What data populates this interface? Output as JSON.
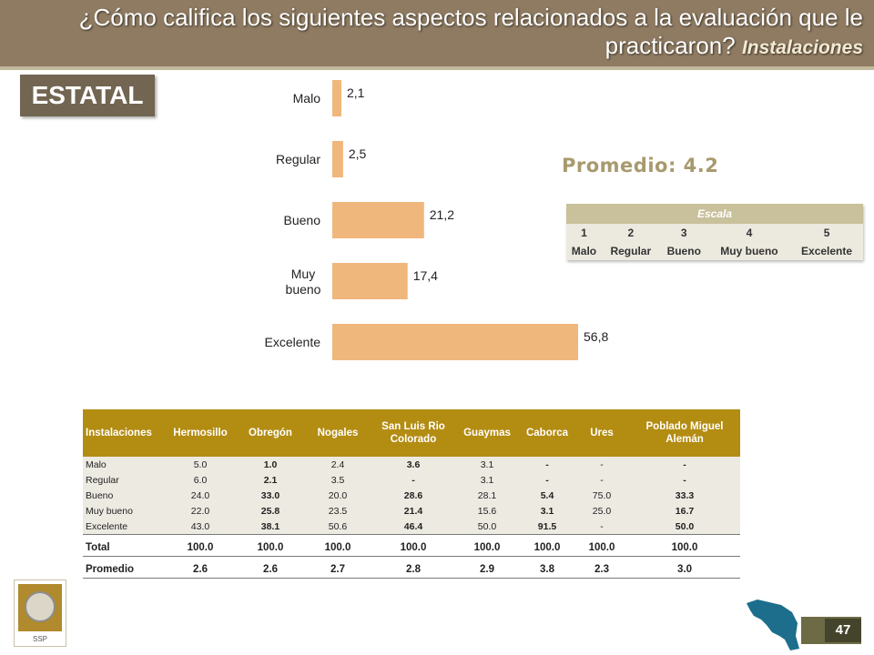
{
  "header": {
    "title": "¿Cómo califica los siguientes aspectos relacionados a la evaluación que le practicaron?",
    "subtitle": "Instalaciones"
  },
  "section_label": "ESTATAL",
  "promedio": "Promedio: 4.2",
  "escala": {
    "title": "Escala",
    "numbers": [
      "1",
      "2",
      "3",
      "4",
      "5"
    ],
    "labels": [
      "Malo",
      "Regular",
      "Bueno",
      "Muy bueno",
      "Excelente"
    ]
  },
  "chart_data": {
    "type": "bar",
    "orientation": "horizontal",
    "categories": [
      "Malo",
      "Regular",
      "Bueno",
      "Muy bueno",
      "Excelente"
    ],
    "values": [
      2.1,
      2.5,
      21.2,
      17.4,
      56.8
    ],
    "value_labels": [
      "2,1",
      "2,5",
      "21,2",
      "17,4",
      "56,8"
    ],
    "xlim": [
      0,
      60
    ],
    "grid": false,
    "bar_color": "#f0b77c"
  },
  "table": {
    "headers": [
      "Instalaciones",
      "Hermosillo",
      "Obregón",
      "Nogales",
      "San Luis Rio Colorado",
      "Guaymas",
      "Caborca",
      "Ures",
      "Poblado Miguel Alemán"
    ],
    "rows": [
      {
        "label": "Malo",
        "cells": [
          "5.0",
          "1.0",
          "2.4",
          "3.6",
          "3.1",
          "-",
          "-",
          "-"
        ]
      },
      {
        "label": "Regular",
        "cells": [
          "6.0",
          "2.1",
          "3.5",
          "-",
          "3.1",
          "-",
          "-",
          "-"
        ]
      },
      {
        "label": "Bueno",
        "cells": [
          "24.0",
          "33.0",
          "20.0",
          "28.6",
          "28.1",
          "5.4",
          "75.0",
          "33.3"
        ]
      },
      {
        "label": "Muy bueno",
        "cells": [
          "22.0",
          "25.8",
          "23.5",
          "21.4",
          "15.6",
          "3.1",
          "25.0",
          "16.7"
        ]
      },
      {
        "label": "Excelente",
        "cells": [
          "43.0",
          "38.1",
          "50.6",
          "46.4",
          "50.0",
          "91.5",
          "-",
          "50.0"
        ]
      }
    ],
    "total": {
      "label": "Total",
      "cells": [
        "100.0",
        "100.0",
        "100.0",
        "100.0",
        "100.0",
        "100.0",
        "100.0",
        "100.0"
      ]
    },
    "promedio": {
      "label": "Promedio",
      "cells": [
        "2.6",
        "2.6",
        "2.7",
        "2.8",
        "2.9",
        "3.8",
        "2.3",
        "3.0"
      ]
    }
  },
  "footer": {
    "logo_text": "SSP",
    "page_number": "47"
  },
  "colors": {
    "header_bg": "#8e7b62",
    "table_header_bg": "#b38c12",
    "bar": "#f0b77c",
    "promedio_text": "#a89a6e"
  }
}
